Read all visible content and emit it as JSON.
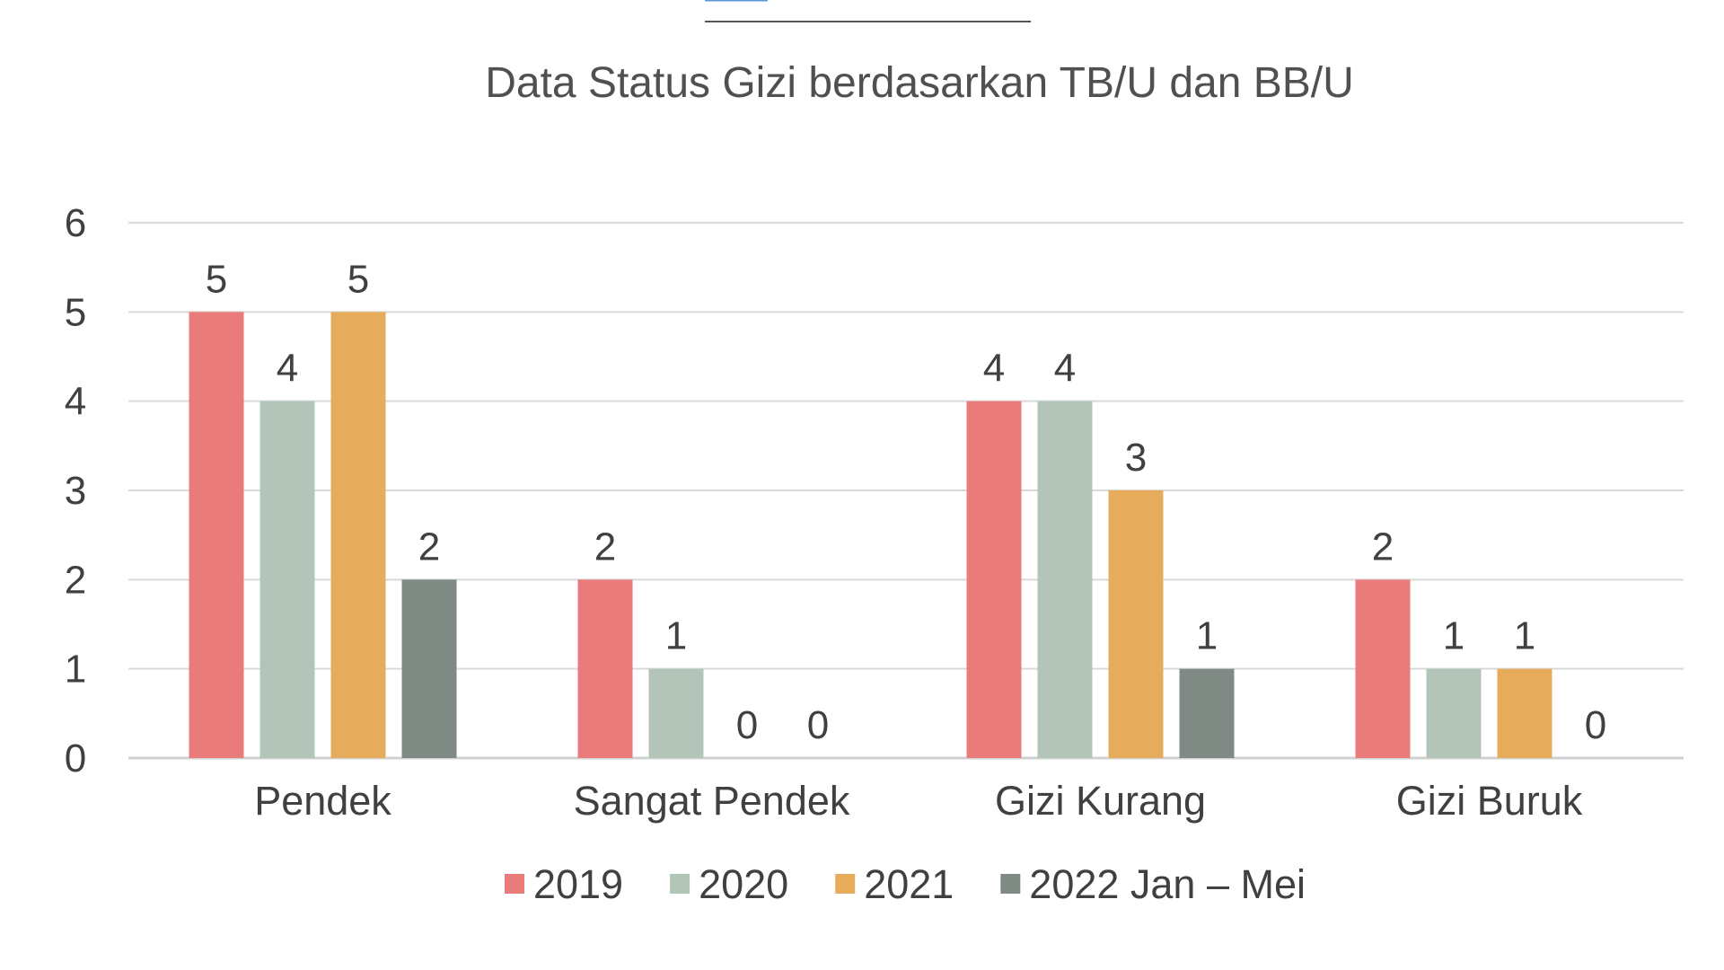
{
  "chart_data": {
    "type": "bar",
    "title": "Data Status Gizi berdasarkan TB/U dan BB/U",
    "categories": [
      "Pendek",
      "Sangat Pendek",
      "Gizi Kurang",
      "Gizi Buruk"
    ],
    "series": [
      {
        "name": "2019",
        "values": [
          5,
          2,
          4,
          2
        ],
        "color": "#e97c7a"
      },
      {
        "name": "2020",
        "values": [
          4,
          1,
          4,
          1
        ],
        "color": "#b3c4b8"
      },
      {
        "name": "2021",
        "values": [
          5,
          0,
          3,
          1
        ],
        "color": "#e6ac5c"
      },
      {
        "name": "2022 Jan – Mei",
        "values": [
          2,
          0,
          1,
          0
        ],
        "color": "#808a85"
      }
    ],
    "yticks": [
      "0",
      "1",
      "2",
      "3",
      "4",
      "5",
      "6"
    ],
    "ylim": [
      0,
      6
    ],
    "grid": true,
    "data_labels": true,
    "legend_position": "bottom"
  }
}
